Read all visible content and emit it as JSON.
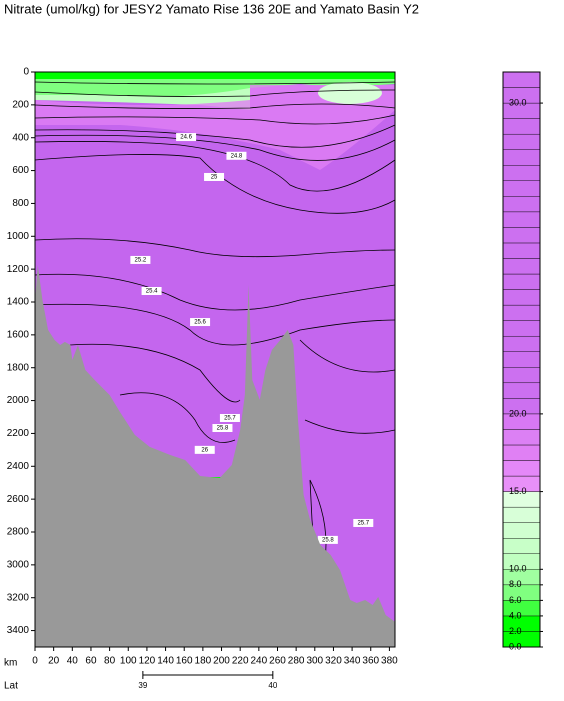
{
  "chart_data": {
    "type": "contour",
    "title": "Nitrate (umol/kg) for JESY2 Yamato Rise 136 20E and Yamato Basin Y2",
    "xlabel": "km",
    "x2label": "Lat",
    "xlim": [
      0,
      386
    ],
    "ylim": [
      0,
      3500
    ],
    "xticks": [
      0,
      20,
      40,
      60,
      80,
      100,
      120,
      140,
      160,
      180,
      200,
      220,
      240,
      260,
      280,
      300,
      320,
      340,
      360,
      380
    ],
    "yticks": [
      0,
      200,
      400,
      600,
      800,
      1000,
      1200,
      1400,
      1600,
      1800,
      2000,
      2200,
      2400,
      2600,
      2800,
      3000,
      3200,
      3400
    ],
    "x2lim": [
      38.17,
      40.94
    ],
    "x2ticks": [
      39,
      40
    ],
    "field_color": "#c466ee",
    "bathymetry_color": "#999999",
    "bathymetry": {
      "km": [
        0,
        3,
        8,
        14,
        21,
        27,
        32,
        38,
        40,
        46,
        54,
        64,
        80,
        91,
        107,
        123,
        145,
        161,
        177,
        198,
        211,
        220,
        225,
        229,
        233,
        241,
        247,
        254,
        263,
        271,
        277,
        282,
        288,
        295,
        306,
        317,
        327,
        338,
        345,
        354,
        362,
        368,
        376,
        386
      ],
      "depth": [
        1390,
        1175,
        1388,
        1570,
        1631,
        1662,
        1643,
        1662,
        1753,
        1662,
        1814,
        1875,
        1966,
        2069,
        2209,
        2282,
        2331,
        2362,
        2459,
        2471,
        2392,
        2179,
        1966,
        1296,
        1875,
        1996,
        1814,
        1692,
        1631,
        1570,
        1662,
        2118,
        2575,
        2727,
        2879,
        2940,
        3031,
        3214,
        3232,
        3214,
        3244,
        3195,
        3305,
        3347
      ]
    },
    "contour_labels": [
      {
        "km": 113,
        "depth": 1144,
        "value": 25.2
      },
      {
        "km": 125,
        "depth": 1333,
        "value": 25.4
      },
      {
        "km": 177,
        "depth": 1522,
        "value": 25.6
      },
      {
        "km": 209,
        "depth": 2106,
        "value": 25.7
      },
      {
        "km": 201,
        "depth": 2167,
        "value": 25.8
      },
      {
        "km": 182,
        "depth": 2300,
        "value": 26
      },
      {
        "km": 352,
        "depth": 2745,
        "value": 25.7
      },
      {
        "km": 314,
        "depth": 2848,
        "value": 25.8
      },
      {
        "km": 192,
        "depth": 639,
        "value": 25
      },
      {
        "km": 162,
        "depth": 396,
        "value": 24.6
      },
      {
        "km": 216,
        "depth": 510,
        "value": 24.8
      }
    ],
    "colorbar": {
      "levels": [
        0,
        2,
        4,
        6,
        8,
        10,
        11,
        12,
        13,
        14,
        15,
        16,
        17,
        18,
        19,
        20,
        20.5,
        21,
        21.5,
        22,
        22.5,
        23,
        23.5,
        24,
        24.5,
        25,
        25.5,
        26,
        26.5,
        27,
        27.5,
        28,
        28.5,
        29,
        29.5,
        30,
        30.5,
        31
      ],
      "colors": [
        "#00ff00",
        "#00ff00",
        "#40ff40",
        "#80ff80",
        "#a0ffa0",
        "#c0ffc0",
        "#c8ffc8",
        "#d0ffd0",
        "#d8ffd8",
        "#e0ffe0",
        "#e890f8",
        "#e488f8",
        "#e080f4",
        "#dc80f4",
        "#d878f4",
        "#cc70f0",
        "#cc70f0",
        "#cc70f0",
        "#cc70f0",
        "#cc70f0",
        "#cc70f0",
        "#cc70f0",
        "#cc70f0",
        "#cc70f0",
        "#cc70f0",
        "#cc70f0",
        "#cc70f0",
        "#cc70f0",
        "#cc70f0",
        "#cc70f0",
        "#cc70f0",
        "#cc70f0",
        "#cc70f0",
        "#cc70f0",
        "#cc70f0",
        "#cc70f0",
        "#cc70f0"
      ],
      "ticks": [
        {
          "value": 0,
          "label": "0.0"
        },
        {
          "value": 2,
          "label": "2.0"
        },
        {
          "value": 4,
          "label": "4.0"
        },
        {
          "value": 6,
          "label": "6.0"
        },
        {
          "value": 8,
          "label": "8.0"
        },
        {
          "value": 10,
          "label": "10.0"
        },
        {
          "value": 15,
          "label": "15.0"
        },
        {
          "value": 20,
          "label": "20.0"
        },
        {
          "value": 30,
          "label": "30.0"
        }
      ]
    }
  }
}
